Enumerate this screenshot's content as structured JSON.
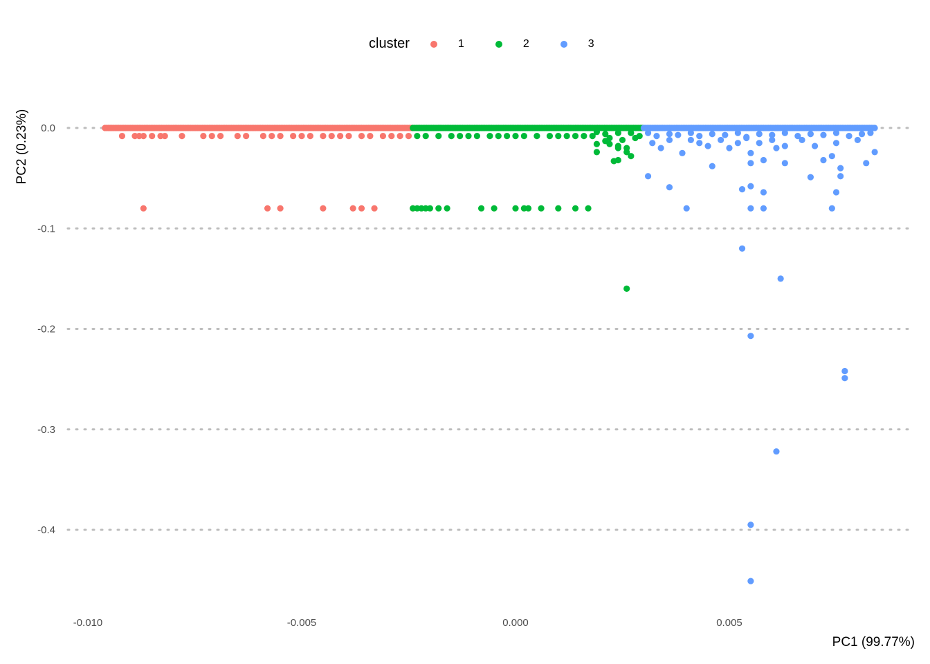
{
  "chart_data": {
    "type": "scatter",
    "title": "",
    "xlabel": "PC1 (99.77%)",
    "ylabel": "PC2 (0.23%)",
    "xlim": [
      -0.0105,
      0.0092
    ],
    "ylim": [
      -0.485,
      0.035
    ],
    "x_ticks": [
      -0.01,
      -0.005,
      0.0,
      0.005
    ],
    "x_tick_labels": [
      "-0.010",
      "-0.005",
      "0.000",
      "0.005"
    ],
    "y_ticks": [
      0.0,
      -0.1,
      -0.2,
      -0.3,
      -0.4
    ],
    "y_tick_labels": [
      "0.0",
      "-0.1",
      "-0.2",
      "-0.3",
      "-0.4"
    ],
    "grid": "horizontal dotted major lines",
    "legend": {
      "title": "cluster",
      "placement": "top",
      "entries": [
        "1",
        "2",
        "3"
      ]
    },
    "series": [
      {
        "name": "1",
        "color": "#F8766D",
        "x_dense_range": [
          -0.0096,
          -0.0024
        ],
        "x_dense_step": 4e-05,
        "points": [
          [
            -0.0092,
            -0.008
          ],
          [
            -0.0089,
            -0.008
          ],
          [
            -0.0088,
            -0.008
          ],
          [
            -0.0087,
            -0.008
          ],
          [
            -0.0085,
            -0.008
          ],
          [
            -0.0083,
            -0.008
          ],
          [
            -0.0082,
            -0.008
          ],
          [
            -0.0078,
            -0.008
          ],
          [
            -0.0073,
            -0.008
          ],
          [
            -0.0071,
            -0.008
          ],
          [
            -0.0069,
            -0.008
          ],
          [
            -0.0065,
            -0.008
          ],
          [
            -0.0063,
            -0.008
          ],
          [
            -0.0059,
            -0.008
          ],
          [
            -0.0057,
            -0.008
          ],
          [
            -0.0055,
            -0.008
          ],
          [
            -0.0052,
            -0.008
          ],
          [
            -0.005,
            -0.008
          ],
          [
            -0.0048,
            -0.008
          ],
          [
            -0.0045,
            -0.008
          ],
          [
            -0.0043,
            -0.008
          ],
          [
            -0.0041,
            -0.008
          ],
          [
            -0.0039,
            -0.008
          ],
          [
            -0.0036,
            -0.008
          ],
          [
            -0.0034,
            -0.008
          ],
          [
            -0.0031,
            -0.008
          ],
          [
            -0.0029,
            -0.008
          ],
          [
            -0.0027,
            -0.008
          ],
          [
            -0.0025,
            -0.008
          ],
          [
            -0.0087,
            -0.08
          ],
          [
            -0.0058,
            -0.08
          ],
          [
            -0.0055,
            -0.08
          ],
          [
            -0.0045,
            -0.08
          ],
          [
            -0.0038,
            -0.08
          ],
          [
            -0.0036,
            -0.08
          ],
          [
            -0.0033,
            -0.08
          ],
          [
            -0.0024,
            -0.08
          ]
        ]
      },
      {
        "name": "2",
        "color": "#00BA38",
        "x_dense_range": [
          -0.0024,
          0.003
        ],
        "x_dense_step": 4e-05,
        "points": [
          [
            -0.0023,
            -0.008
          ],
          [
            -0.0021,
            -0.008
          ],
          [
            -0.0018,
            -0.008
          ],
          [
            -0.0015,
            -0.008
          ],
          [
            -0.0013,
            -0.008
          ],
          [
            -0.0011,
            -0.008
          ],
          [
            -0.0009,
            -0.008
          ],
          [
            -0.0006,
            -0.008
          ],
          [
            -0.0004,
            -0.008
          ],
          [
            -0.0002,
            -0.008
          ],
          [
            0.0,
            -0.008
          ],
          [
            0.0002,
            -0.008
          ],
          [
            0.0005,
            -0.008
          ],
          [
            0.0008,
            -0.008
          ],
          [
            0.001,
            -0.008
          ],
          [
            0.0012,
            -0.008
          ],
          [
            0.0014,
            -0.008
          ],
          [
            0.0016,
            -0.008
          ],
          [
            0.0018,
            -0.008
          ],
          [
            0.0019,
            -0.004
          ],
          [
            0.0021,
            -0.006
          ],
          [
            0.0022,
            -0.01
          ],
          [
            0.0024,
            -0.005
          ],
          [
            0.0025,
            -0.012
          ],
          [
            0.0027,
            -0.005
          ],
          [
            0.0028,
            -0.01
          ],
          [
            0.0029,
            -0.008
          ],
          [
            0.0019,
            -0.016
          ],
          [
            0.0019,
            -0.024
          ],
          [
            0.0021,
            -0.013
          ],
          [
            0.0022,
            -0.016
          ],
          [
            0.0024,
            -0.018
          ],
          [
            0.0024,
            -0.02
          ],
          [
            0.0026,
            -0.02
          ],
          [
            0.0026,
            -0.024
          ],
          [
            0.0027,
            -0.028
          ],
          [
            0.0023,
            -0.033
          ],
          [
            0.0024,
            -0.032
          ],
          [
            -0.0024,
            -0.08
          ],
          [
            -0.0023,
            -0.08
          ],
          [
            -0.0022,
            -0.08
          ],
          [
            -0.0021,
            -0.08
          ],
          [
            -0.002,
            -0.08
          ],
          [
            -0.0018,
            -0.08
          ],
          [
            -0.0016,
            -0.08
          ],
          [
            -0.0008,
            -0.08
          ],
          [
            -0.0005,
            -0.08
          ],
          [
            0.0,
            -0.08
          ],
          [
            0.0002,
            -0.08
          ],
          [
            0.0003,
            -0.08
          ],
          [
            0.0006,
            -0.08
          ],
          [
            0.001,
            -0.08
          ],
          [
            0.0014,
            -0.08
          ],
          [
            0.0017,
            -0.08
          ],
          [
            0.0026,
            -0.16
          ]
        ]
      },
      {
        "name": "3",
        "color": "#619CFF",
        "x_dense_range": [
          0.003,
          0.0084
        ],
        "x_dense_step": 4e-05,
        "points": [
          [
            0.0031,
            -0.005
          ],
          [
            0.0033,
            -0.008
          ],
          [
            0.0036,
            -0.006
          ],
          [
            0.0038,
            -0.007
          ],
          [
            0.0041,
            -0.005
          ],
          [
            0.0043,
            -0.008
          ],
          [
            0.0046,
            -0.006
          ],
          [
            0.0049,
            -0.007
          ],
          [
            0.0052,
            -0.005
          ],
          [
            0.0054,
            -0.009
          ],
          [
            0.0057,
            -0.006
          ],
          [
            0.006,
            -0.007
          ],
          [
            0.0063,
            -0.005
          ],
          [
            0.0066,
            -0.008
          ],
          [
            0.0069,
            -0.006
          ],
          [
            0.0072,
            -0.007
          ],
          [
            0.0075,
            -0.005
          ],
          [
            0.0078,
            -0.008
          ],
          [
            0.0081,
            -0.006
          ],
          [
            0.0083,
            -0.005
          ],
          [
            0.0032,
            -0.015
          ],
          [
            0.0034,
            -0.02
          ],
          [
            0.0036,
            -0.012
          ],
          [
            0.0039,
            -0.025
          ],
          [
            0.0041,
            -0.012
          ],
          [
            0.0043,
            -0.015
          ],
          [
            0.0045,
            -0.018
          ],
          [
            0.0046,
            -0.038
          ],
          [
            0.0048,
            -0.012
          ],
          [
            0.005,
            -0.02
          ],
          [
            0.0052,
            -0.015
          ],
          [
            0.0054,
            -0.01
          ],
          [
            0.0055,
            -0.025
          ],
          [
            0.0055,
            -0.035
          ],
          [
            0.0057,
            -0.015
          ],
          [
            0.0058,
            -0.032
          ],
          [
            0.006,
            -0.012
          ],
          [
            0.0061,
            -0.02
          ],
          [
            0.0063,
            -0.018
          ],
          [
            0.0063,
            -0.035
          ],
          [
            0.0067,
            -0.012
          ],
          [
            0.007,
            -0.018
          ],
          [
            0.0072,
            -0.032
          ],
          [
            0.0074,
            -0.028
          ],
          [
            0.0075,
            -0.015
          ],
          [
            0.0076,
            -0.04
          ],
          [
            0.0076,
            -0.048
          ],
          [
            0.008,
            -0.012
          ],
          [
            0.0082,
            -0.035
          ],
          [
            0.0084,
            -0.024
          ],
          [
            0.0031,
            -0.048
          ],
          [
            0.0036,
            -0.059
          ],
          [
            0.004,
            -0.08
          ],
          [
            0.0053,
            -0.061
          ],
          [
            0.0055,
            -0.058
          ],
          [
            0.0055,
            -0.08
          ],
          [
            0.0058,
            -0.064
          ],
          [
            0.0058,
            -0.08
          ],
          [
            0.0069,
            -0.049
          ],
          [
            0.0075,
            -0.064
          ],
          [
            0.0074,
            -0.08
          ],
          [
            0.0053,
            -0.12
          ],
          [
            0.0062,
            -0.15
          ],
          [
            0.0055,
            -0.207
          ],
          [
            0.0077,
            -0.242
          ],
          [
            0.0077,
            -0.249
          ],
          [
            0.0061,
            -0.322
          ],
          [
            0.0055,
            -0.395
          ],
          [
            0.0055,
            -0.451
          ]
        ]
      }
    ]
  }
}
